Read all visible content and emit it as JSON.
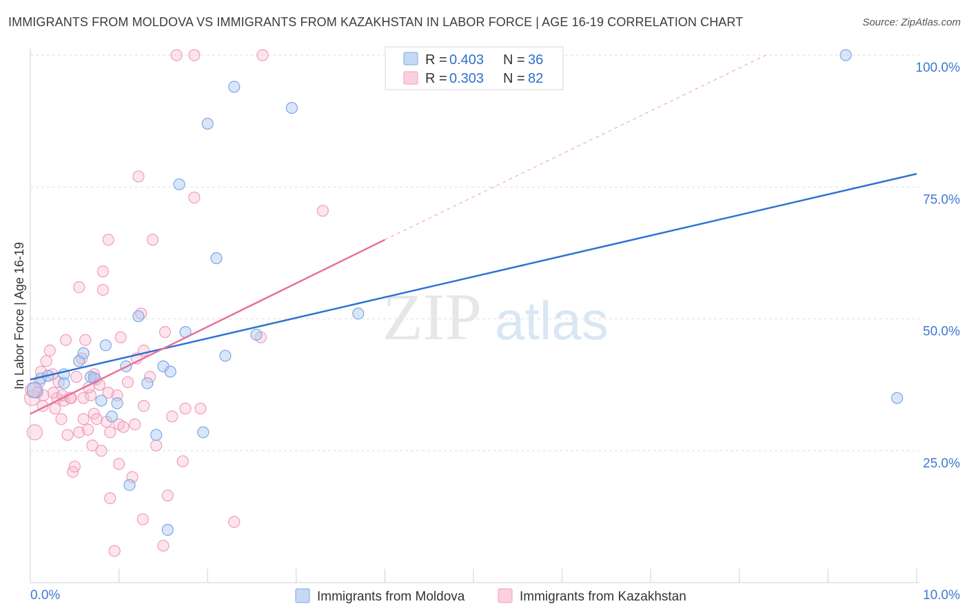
{
  "title": "IMMIGRANTS FROM MOLDOVA VS IMMIGRANTS FROM KAZAKHSTAN IN LABOR FORCE | AGE 16-19 CORRELATION CHART",
  "source": "Source: ZipAtlas.com",
  "watermark": {
    "zip": "ZIP",
    "atlas": "atlas"
  },
  "legend_stats": [
    {
      "r_label": "R =",
      "r": "0.403",
      "n_label": "N =",
      "n": "36"
    },
    {
      "r_label": "R =",
      "r": "0.303",
      "n_label": "N =",
      "n": "82"
    }
  ],
  "chart_data": {
    "type": "scatter",
    "title": "IMMIGRANTS FROM MOLDOVA VS IMMIGRANTS FROM KAZAKHSTAN IN LABOR FORCE | AGE 16-19 CORRELATION CHART",
    "xlabel": "",
    "ylabel": "In Labor Force | Age 16-19",
    "xlim": [
      0,
      10
    ],
    "ylim": [
      0,
      105
    ],
    "x_tick_labels": [
      "0.0%",
      "10.0%"
    ],
    "y_ticks": [
      25,
      50,
      75,
      100
    ],
    "y_tick_labels": [
      "25.0%",
      "50.0%",
      "75.0%",
      "100.0%"
    ],
    "grid": true,
    "series": [
      {
        "name": "Immigrants from Moldova",
        "color": "#7aa7e6",
        "line_color": "#2f72d0",
        "trend": {
          "x0": 0,
          "y0": 38.5,
          "x1": 10,
          "y1": 77.5,
          "dashed_to": null
        },
        "points": [
          [
            0.05,
            36.5
          ],
          [
            0.12,
            38.7
          ],
          [
            0.2,
            39.2
          ],
          [
            0.38,
            39.5
          ],
          [
            0.38,
            37.8
          ],
          [
            0.55,
            42
          ],
          [
            0.6,
            43.5
          ],
          [
            0.68,
            39
          ],
          [
            0.72,
            38.8
          ],
          [
            0.8,
            34.5
          ],
          [
            0.85,
            45
          ],
          [
            0.92,
            31.5
          ],
          [
            0.98,
            34
          ],
          [
            1.08,
            41
          ],
          [
            1.12,
            18.5
          ],
          [
            1.22,
            50.5
          ],
          [
            1.32,
            37.8
          ],
          [
            1.42,
            28
          ],
          [
            1.5,
            41
          ],
          [
            1.55,
            10
          ],
          [
            1.58,
            40
          ],
          [
            1.68,
            75.5
          ],
          [
            1.75,
            47.5
          ],
          [
            1.95,
            28.5
          ],
          [
            2.0,
            87
          ],
          [
            2.1,
            61.5
          ],
          [
            2.2,
            43
          ],
          [
            2.3,
            94
          ],
          [
            2.55,
            47
          ],
          [
            2.95,
            90
          ],
          [
            3.7,
            51
          ],
          [
            9.2,
            100
          ],
          [
            9.78,
            35
          ]
        ]
      },
      {
        "name": "Immigrants from Kazakhstan",
        "color": "#f59bb8",
        "line_color": "#e8709c",
        "trend": {
          "x0": 0,
          "y0": 32,
          "x1": 4.0,
          "y1": 65,
          "dash_x1": 8.3,
          "dash_y1": 100
        },
        "points": [
          [
            0.02,
            35
          ],
          [
            0.05,
            28.5
          ],
          [
            0.08,
            36
          ],
          [
            0.12,
            40
          ],
          [
            0.15,
            35.5
          ],
          [
            0.18,
            42
          ],
          [
            0.22,
            44
          ],
          [
            0.25,
            39.5
          ],
          [
            0.28,
            33
          ],
          [
            0.3,
            35
          ],
          [
            0.32,
            38
          ],
          [
            0.35,
            31
          ],
          [
            0.38,
            34.5
          ],
          [
            0.4,
            46
          ],
          [
            0.42,
            28
          ],
          [
            0.45,
            35
          ],
          [
            0.48,
            21
          ],
          [
            0.5,
            22
          ],
          [
            0.52,
            39
          ],
          [
            0.55,
            28.5
          ],
          [
            0.55,
            56
          ],
          [
            0.58,
            42.5
          ],
          [
            0.6,
            35
          ],
          [
            0.62,
            46
          ],
          [
            0.65,
            29
          ],
          [
            0.68,
            35.5
          ],
          [
            0.7,
            26
          ],
          [
            0.72,
            32
          ],
          [
            0.72,
            39.5
          ],
          [
            0.75,
            31
          ],
          [
            0.78,
            37.5
          ],
          [
            0.8,
            25
          ],
          [
            0.82,
            59
          ],
          [
            0.82,
            55.5
          ],
          [
            0.88,
            65
          ],
          [
            0.88,
            36
          ],
          [
            0.9,
            28.5
          ],
          [
            0.9,
            16
          ],
          [
            0.95,
            6
          ],
          [
            0.98,
            35.5
          ],
          [
            1.0,
            30
          ],
          [
            1.0,
            22.5
          ],
          [
            1.02,
            46.5
          ],
          [
            1.05,
            29.5
          ],
          [
            1.1,
            38
          ],
          [
            1.15,
            20
          ],
          [
            1.18,
            30
          ],
          [
            1.2,
            42.5
          ],
          [
            1.22,
            77
          ],
          [
            1.25,
            51
          ],
          [
            1.27,
            12
          ],
          [
            1.28,
            33.5
          ],
          [
            1.28,
            44
          ],
          [
            1.35,
            39
          ],
          [
            1.38,
            65
          ],
          [
            1.42,
            26
          ],
          [
            1.5,
            7
          ],
          [
            1.52,
            47.5
          ],
          [
            1.55,
            16.5
          ],
          [
            1.6,
            31.5
          ],
          [
            1.65,
            100
          ],
          [
            1.72,
            23
          ],
          [
            1.75,
            33
          ],
          [
            1.85,
            100
          ],
          [
            1.85,
            73
          ],
          [
            1.92,
            33
          ],
          [
            2.3,
            11.5
          ],
          [
            2.6,
            46.5
          ],
          [
            2.62,
            100
          ],
          [
            3.3,
            70.5
          ],
          [
            0.03,
            36.5
          ],
          [
            0.1,
            38
          ],
          [
            0.14,
            33.5
          ],
          [
            0.26,
            36
          ],
          [
            0.36,
            35.5
          ],
          [
            0.46,
            35
          ],
          [
            0.6,
            31
          ],
          [
            0.66,
            37
          ],
          [
            0.74,
            38.5
          ],
          [
            0.86,
            30.5
          ]
        ]
      }
    ]
  },
  "legend": {
    "moldova_label": "Immigrants from Moldova",
    "kazakhstan_label": "Immigrants from Kazakhstan"
  }
}
